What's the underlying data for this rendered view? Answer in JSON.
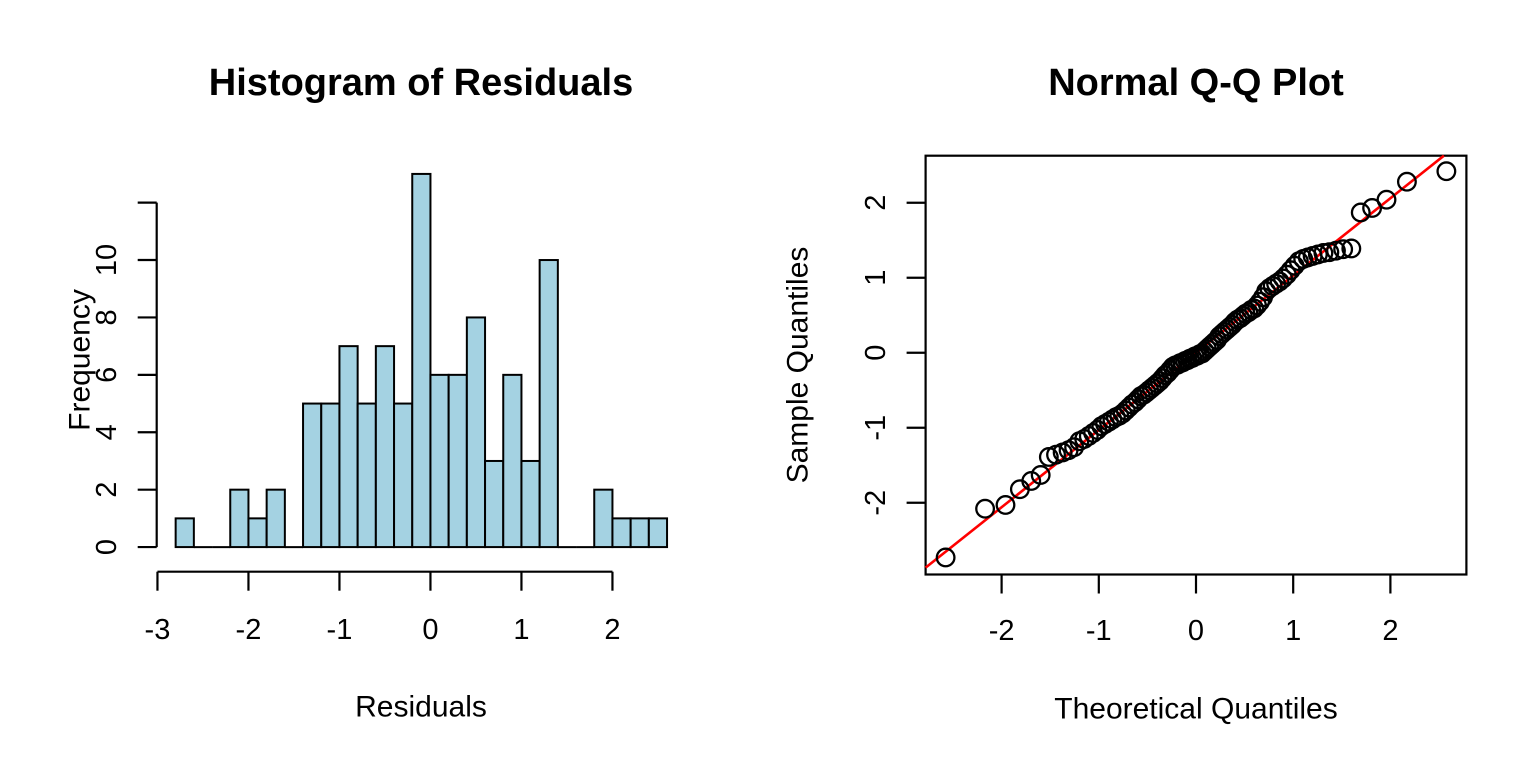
{
  "figure": {
    "background": "#FFFFFF",
    "foreground": "#000000"
  },
  "chart_data": [
    {
      "type": "bar",
      "kind": "histogram",
      "title": "Histogram of Residuals",
      "xlabel": "Residuals",
      "ylabel": "Frequency",
      "bin_start": -2.8,
      "bin_width": 0.2,
      "counts": [
        1,
        0,
        0,
        2,
        1,
        2,
        0,
        5,
        5,
        7,
        5,
        7,
        5,
        13,
        6,
        6,
        8,
        3,
        6,
        3,
        10,
        0,
        0,
        2,
        1,
        1,
        1
      ],
      "x_ticks": [
        -3,
        -2,
        -1,
        0,
        1,
        2
      ],
      "x_tick_labels": [
        "-3",
        "-2",
        "-1",
        "0",
        "1",
        "2"
      ],
      "y_ticks": [
        0,
        2,
        4,
        6,
        8,
        10,
        12
      ],
      "y_tick_labels": [
        "0",
        "2",
        "4",
        "6",
        "8",
        "10",
        ""
      ],
      "xlim": [
        -3.016,
        2.816
      ],
      "ylim": [
        -0.52,
        13.52
      ],
      "grid": false,
      "bar_fill": "#A4D2E2",
      "bar_stroke": "#000000"
    },
    {
      "type": "scatter",
      "kind": "qqnorm",
      "title": "Normal Q-Q Plot",
      "xlabel": "Theoretical Quantiles",
      "ylabel": "Sample Quantiles",
      "x_ticks": [
        -2,
        -1,
        0,
        1,
        2
      ],
      "x_tick_labels": [
        "-2",
        "-1",
        "0",
        "1",
        "2"
      ],
      "y_ticks": [
        -2,
        -1,
        0,
        1,
        2
      ],
      "y_tick_labels": [
        "-2",
        "-1",
        "0",
        "1",
        "2"
      ],
      "xlim": [
        -2.782,
        2.782
      ],
      "ylim": [
        -2.957,
        2.627
      ],
      "grid": false,
      "point_style": {
        "shape": "open-circle",
        "stroke": "#000000"
      },
      "qqline": {
        "slope": 1.03,
        "intercept": 0.0,
        "color": "#FF0000"
      },
      "points": [
        [
          -2.576,
          -2.73
        ],
        [
          -2.17,
          -2.08
        ],
        [
          -1.96,
          -2.03
        ],
        [
          -1.812,
          -1.82
        ],
        [
          -1.695,
          -1.71
        ],
        [
          -1.598,
          -1.63
        ],
        [
          -1.514,
          -1.39
        ],
        [
          -1.44,
          -1.36
        ],
        [
          -1.372,
          -1.33
        ],
        [
          -1.311,
          -1.3
        ],
        [
          -1.254,
          -1.26
        ],
        [
          -1.2,
          -1.18
        ],
        [
          -1.15,
          -1.15
        ],
        [
          -1.103,
          -1.11
        ],
        [
          -1.058,
          -1.07
        ],
        [
          -1.015,
          -1.03
        ],
        [
          -0.974,
          -0.98
        ],
        [
          -0.935,
          -0.95
        ],
        [
          -0.896,
          -0.92
        ],
        [
          -0.86,
          -0.89
        ],
        [
          -0.824,
          -0.86
        ],
        [
          -0.789,
          -0.84
        ],
        [
          -0.755,
          -0.81
        ],
        [
          -0.722,
          -0.77
        ],
        [
          -0.69,
          -0.73
        ],
        [
          -0.659,
          -0.69
        ],
        [
          -0.628,
          -0.66
        ],
        [
          -0.598,
          -0.62
        ],
        [
          -0.568,
          -0.58
        ],
        [
          -0.539,
          -0.56
        ],
        [
          -0.51,
          -0.53
        ],
        [
          -0.482,
          -0.5
        ],
        [
          -0.454,
          -0.47
        ],
        [
          -0.426,
          -0.44
        ],
        [
          -0.399,
          -0.41
        ],
        [
          -0.372,
          -0.38
        ],
        [
          -0.345,
          -0.34
        ],
        [
          -0.319,
          -0.3
        ],
        [
          -0.292,
          -0.27
        ],
        [
          -0.266,
          -0.23
        ],
        [
          -0.24,
          -0.19
        ],
        [
          -0.215,
          -0.17
        ],
        [
          -0.189,
          -0.16
        ],
        [
          -0.164,
          -0.14
        ],
        [
          -0.138,
          -0.13
        ],
        [
          -0.113,
          -0.11
        ],
        [
          -0.088,
          -0.1
        ],
        [
          -0.063,
          -0.08
        ],
        [
          -0.038,
          -0.07
        ],
        [
          -0.013,
          -0.05
        ],
        [
          0.013,
          -0.04
        ],
        [
          0.038,
          -0.02
        ],
        [
          0.063,
          -0.01
        ],
        [
          0.088,
          0.02
        ],
        [
          0.113,
          0.05
        ],
        [
          0.138,
          0.08
        ],
        [
          0.164,
          0.11
        ],
        [
          0.189,
          0.14
        ],
        [
          0.215,
          0.17
        ],
        [
          0.24,
          0.22
        ],
        [
          0.266,
          0.25
        ],
        [
          0.292,
          0.28
        ],
        [
          0.319,
          0.31
        ],
        [
          0.345,
          0.34
        ],
        [
          0.372,
          0.37
        ],
        [
          0.399,
          0.41
        ],
        [
          0.426,
          0.44
        ],
        [
          0.454,
          0.46
        ],
        [
          0.482,
          0.49
        ],
        [
          0.51,
          0.52
        ],
        [
          0.539,
          0.54
        ],
        [
          0.568,
          0.57
        ],
        [
          0.598,
          0.59
        ],
        [
          0.628,
          0.63
        ],
        [
          0.659,
          0.68
        ],
        [
          0.69,
          0.74
        ],
        [
          0.722,
          0.82
        ],
        [
          0.755,
          0.86
        ],
        [
          0.789,
          0.89
        ],
        [
          0.824,
          0.92
        ],
        [
          0.86,
          0.95
        ],
        [
          0.896,
          0.99
        ],
        [
          0.935,
          1.04
        ],
        [
          0.974,
          1.1
        ],
        [
          1.015,
          1.16
        ],
        [
          1.058,
          1.22
        ],
        [
          1.103,
          1.25
        ],
        [
          1.15,
          1.27
        ],
        [
          1.2,
          1.29
        ],
        [
          1.254,
          1.31
        ],
        [
          1.311,
          1.33
        ],
        [
          1.372,
          1.34
        ],
        [
          1.44,
          1.36
        ],
        [
          1.514,
          1.38
        ],
        [
          1.598,
          1.39
        ],
        [
          1.695,
          1.87
        ],
        [
          1.812,
          1.93
        ],
        [
          1.96,
          2.04
        ],
        [
          2.17,
          2.28
        ],
        [
          2.576,
          2.42
        ]
      ]
    }
  ]
}
